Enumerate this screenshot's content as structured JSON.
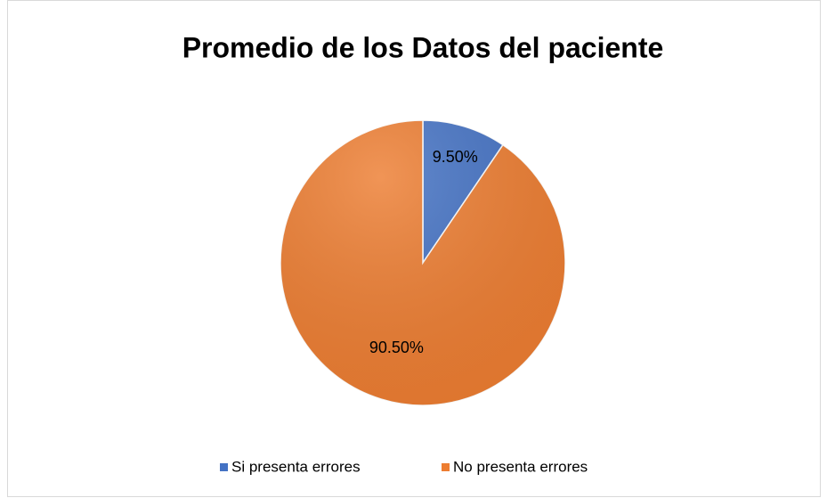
{
  "chart_data": {
    "type": "pie",
    "title": "Promedio de los Datos del paciente",
    "categories": [
      "Si presenta errores",
      "No presenta errores"
    ],
    "values": [
      9.5,
      90.5
    ],
    "value_labels": [
      "9.50%",
      "90.50%"
    ],
    "colors": [
      "#4472c4",
      "#ed7d31"
    ],
    "legend": "bottom"
  }
}
